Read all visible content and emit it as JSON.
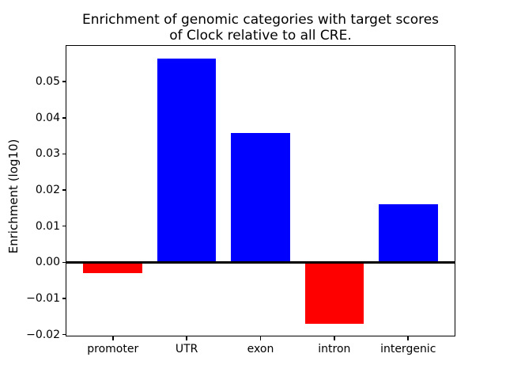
{
  "figure": {
    "title_line1": "Enrichment of genomic categories with target scores",
    "title_line2": "of Clock relative to all CRE."
  },
  "chart_data": {
    "type": "bar",
    "title": "Enrichment of genomic categories with target scores of Clock relative to all CRE.",
    "categories": [
      "promoter",
      "UTR",
      "exon",
      "intron",
      "intergenic"
    ],
    "values": [
      -0.003,
      0.0564,
      0.0358,
      -0.017,
      0.016
    ],
    "bar_colors": [
      "#ff0000",
      "#0000ff",
      "#0000ff",
      "#ff0000",
      "#0000ff"
    ],
    "positive_color": "#0000ff",
    "negative_color": "#ff0000",
    "xlabel": "",
    "ylabel": "Enrichment (log10)",
    "ylim": [
      -0.0205,
      0.0601
    ],
    "xlim": [
      -0.64,
      4.64
    ],
    "bar_width": 0.8,
    "yticks": [
      {
        "value": 0.05,
        "label": "0.05"
      },
      {
        "value": 0.04,
        "label": "0.04"
      },
      {
        "value": 0.03,
        "label": "0.03"
      },
      {
        "value": 0.02,
        "label": "0.02"
      },
      {
        "value": 0.01,
        "label": "0.01"
      },
      {
        "value": 0.0,
        "label": "0.00"
      },
      {
        "value": -0.01,
        "label": "−0.01"
      },
      {
        "value": -0.02,
        "label": "−0.02"
      }
    ],
    "zero_line": true,
    "grid": false,
    "legend": false,
    "axis_color": "#000000",
    "background_color": "#ffffff"
  }
}
